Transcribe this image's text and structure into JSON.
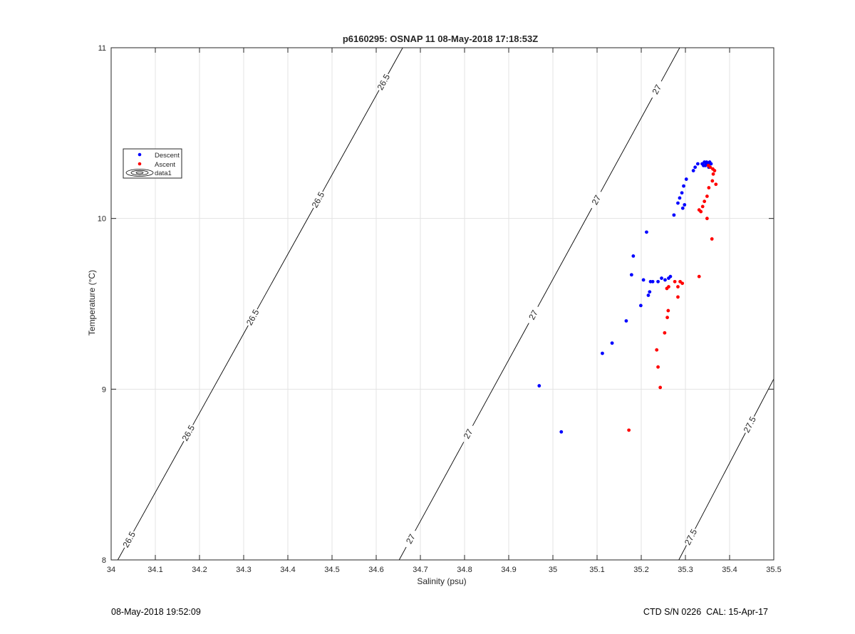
{
  "chart_data": {
    "type": "scatter",
    "title": "p6160295: OSNAP 11 08-May-2018 17:18:53Z",
    "xlabel": "Salinity (psu)",
    "ylabel": "Temperature (°C)",
    "xlim": [
      34,
      35.5
    ],
    "ylim": [
      8,
      11
    ],
    "xticks": [
      34,
      34.1,
      34.2,
      34.3,
      34.4,
      34.5,
      34.6,
      34.7,
      34.8,
      34.9,
      35,
      35.1,
      35.2,
      35.3,
      35.4,
      35.5
    ],
    "xtick_labels": [
      "34",
      "34.1",
      "34.2",
      "34.3",
      "34.4",
      "34.5",
      "34.6",
      "34.7",
      "34.8",
      "34.9",
      "35",
      "35.1",
      "35.2",
      "35.3",
      "35.4",
      "35.5"
    ],
    "yticks": [
      8,
      9,
      10,
      11
    ],
    "ytick_labels": [
      "8",
      "9",
      "10",
      "11"
    ],
    "grid": true,
    "legend_position": "left, upper middle",
    "series": [
      {
        "name": "Descent",
        "color": "#0000ff",
        "points": [
          [
            34.969,
            9.02
          ],
          [
            35.019,
            8.75
          ],
          [
            35.112,
            9.21
          ],
          [
            35.134,
            9.27
          ],
          [
            35.166,
            9.4
          ],
          [
            35.178,
            9.67
          ],
          [
            35.182,
            9.78
          ],
          [
            35.199,
            9.49
          ],
          [
            35.205,
            9.64
          ],
          [
            35.212,
            9.92
          ],
          [
            35.216,
            9.55
          ],
          [
            35.219,
            9.57
          ],
          [
            35.221,
            9.63
          ],
          [
            35.226,
            9.63
          ],
          [
            35.238,
            9.63
          ],
          [
            35.246,
            9.65
          ],
          [
            35.254,
            9.64
          ],
          [
            35.262,
            9.65
          ],
          [
            35.266,
            9.66
          ],
          [
            35.274,
            10.02
          ],
          [
            35.283,
            10.09
          ],
          [
            35.287,
            10.12
          ],
          [
            35.292,
            10.15
          ],
          [
            35.294,
            10.06
          ],
          [
            35.296,
            10.19
          ],
          [
            35.298,
            10.08
          ],
          [
            35.302,
            10.23
          ],
          [
            35.318,
            10.28
          ],
          [
            35.322,
            10.3
          ],
          [
            35.328,
            10.32
          ],
          [
            35.338,
            10.32
          ],
          [
            35.343,
            10.33
          ],
          [
            35.345,
            10.31
          ],
          [
            35.348,
            10.33
          ],
          [
            35.351,
            10.32
          ],
          [
            35.355,
            10.33
          ],
          [
            35.358,
            10.32
          ],
          [
            35.353,
            10.3
          ],
          [
            35.347,
            10.32
          ],
          [
            35.341,
            10.31
          ]
        ]
      },
      {
        "name": "Ascent",
        "color": "#ff0000",
        "points": [
          [
            35.172,
            8.76
          ],
          [
            35.243,
            9.01
          ],
          [
            35.238,
            9.13
          ],
          [
            35.235,
            9.23
          ],
          [
            35.253,
            9.33
          ],
          [
            35.259,
            9.42
          ],
          [
            35.261,
            9.46
          ],
          [
            35.258,
            9.59
          ],
          [
            35.262,
            9.6
          ],
          [
            35.276,
            9.63
          ],
          [
            35.283,
            9.54
          ],
          [
            35.283,
            9.6
          ],
          [
            35.288,
            9.63
          ],
          [
            35.293,
            9.62
          ],
          [
            35.331,
            9.66
          ],
          [
            35.36,
            9.88
          ],
          [
            35.349,
            10.0
          ],
          [
            35.331,
            10.05
          ],
          [
            35.335,
            10.04
          ],
          [
            35.339,
            10.07
          ],
          [
            35.343,
            10.1
          ],
          [
            35.349,
            10.13
          ],
          [
            35.353,
            10.18
          ],
          [
            35.361,
            10.22
          ],
          [
            35.369,
            10.2
          ],
          [
            35.363,
            10.26
          ],
          [
            35.366,
            10.28
          ],
          [
            35.362,
            10.29
          ],
          [
            35.356,
            10.3
          ],
          [
            35.352,
            10.31
          ]
        ]
      }
    ],
    "contours": [
      {
        "level": "26.5",
        "line": [
          [
            34.015,
            8.0
          ],
          [
            34.66,
            11.0
          ]
        ],
        "labels": [
          [
            34.04,
            8.12
          ],
          [
            34.17,
            8.75
          ],
          [
            34.3,
            9.45
          ],
          [
            34.44,
            10.15
          ],
          [
            34.595,
            10.83
          ]
        ]
      },
      {
        "level": "27",
        "line": [
          [
            34.652,
            8.0
          ],
          [
            35.287,
            11.0
          ]
        ],
        "labels": [
          [
            34.68,
            8.12
          ],
          [
            34.8,
            8.75
          ],
          [
            34.945,
            9.45
          ],
          [
            35.09,
            10.12
          ],
          [
            35.225,
            10.77
          ]
        ]
      },
      {
        "level": "27.5",
        "line": [
          [
            35.285,
            8.0
          ],
          [
            35.5,
            9.06
          ]
        ],
        "labels": [
          [
            35.315,
            8.13
          ],
          [
            35.44,
            8.8
          ]
        ]
      }
    ]
  },
  "legend": {
    "items": [
      {
        "label": "Descent",
        "kind": "blue-dot"
      },
      {
        "label": "Ascent",
        "kind": "red-dot"
      },
      {
        "label": "data1",
        "kind": "contour-ellipses"
      }
    ]
  },
  "footer": {
    "left_text": "08-May-2018 19:52:09",
    "right_text": "CTD S/N 0226  CAL: 15-Apr-17"
  }
}
